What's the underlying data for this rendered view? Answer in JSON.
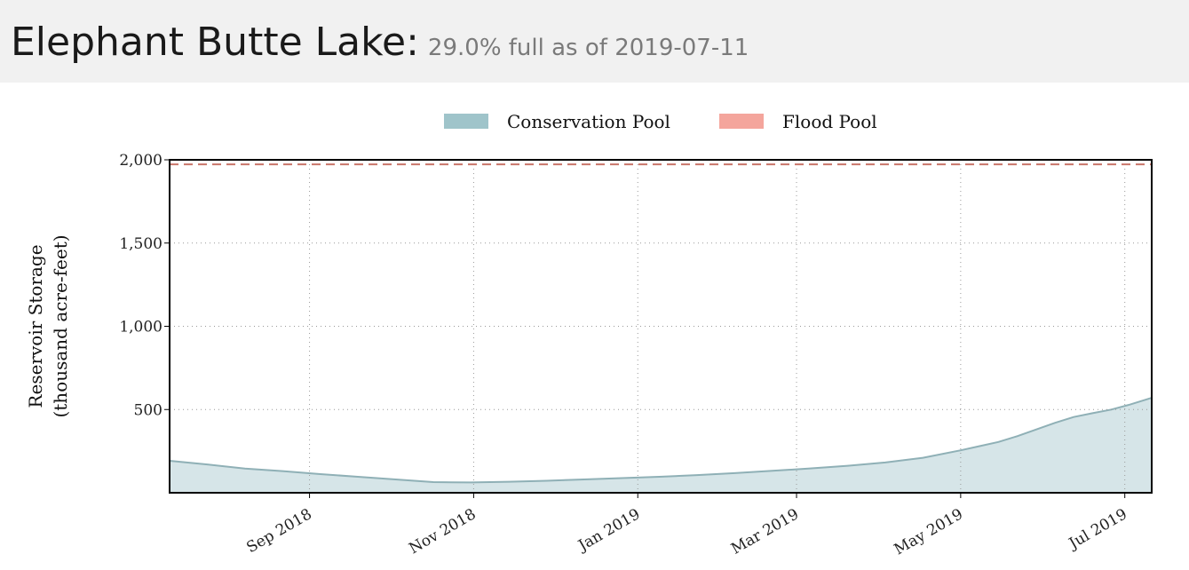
{
  "header": {
    "lake_name": "Elephant Butte Lake:",
    "status": "29.0% full as of 2019-07-11"
  },
  "chart_data": {
    "type": "area",
    "legend": [
      {
        "name": "Conservation Pool",
        "color": "#9fc4ca"
      },
      {
        "name": "Flood Pool",
        "color": "#f4a59c"
      }
    ],
    "legend_position": "top-center",
    "ylabel": [
      "Reservoir Storage",
      "(thousand acre-feet)"
    ],
    "ylim": [
      0,
      2000
    ],
    "yticks": [
      500,
      1000,
      1500,
      2000
    ],
    "ytick_labels": [
      "500",
      "1,000",
      "1,500",
      "2,000"
    ],
    "xlim": [
      "2018-07-11",
      "2019-07-11"
    ],
    "xticks": [
      "2018-09-01",
      "2018-11-01",
      "2019-01-01",
      "2019-03-01",
      "2019-05-01",
      "2019-07-01"
    ],
    "xtick_labels": [
      "Sep 2018",
      "Nov 2018",
      "Jan 2019",
      "Mar 2019",
      "May 2019",
      "Jul 2019"
    ],
    "grid": true,
    "flood_pool_line": 1973,
    "colors": {
      "conservation_fill": "#d6e5e8",
      "conservation_line": "#8fb0b6",
      "flood_line": "#c9766a",
      "grid": "#999999"
    },
    "series": [
      {
        "name": "Conservation Pool",
        "points": [
          [
            "2018-07-11",
            192
          ],
          [
            "2018-07-25",
            170
          ],
          [
            "2018-08-08",
            145
          ],
          [
            "2018-08-22",
            130
          ],
          [
            "2018-09-05",
            112
          ],
          [
            "2018-09-19",
            96
          ],
          [
            "2018-10-03",
            80
          ],
          [
            "2018-10-17",
            64
          ],
          [
            "2018-10-31",
            62
          ],
          [
            "2018-11-14",
            66
          ],
          [
            "2018-11-28",
            72
          ],
          [
            "2018-12-12",
            80
          ],
          [
            "2018-12-26",
            88
          ],
          [
            "2019-01-09",
            96
          ],
          [
            "2019-01-23",
            106
          ],
          [
            "2019-02-06",
            118
          ],
          [
            "2019-02-20",
            132
          ],
          [
            "2019-03-06",
            146
          ],
          [
            "2019-03-20",
            162
          ],
          [
            "2019-04-03",
            182
          ],
          [
            "2019-04-17",
            210
          ],
          [
            "2019-05-01",
            255
          ],
          [
            "2019-05-08",
            280
          ],
          [
            "2019-05-15",
            305
          ],
          [
            "2019-05-22",
            340
          ],
          [
            "2019-05-29",
            380
          ],
          [
            "2019-06-05",
            420
          ],
          [
            "2019-06-12",
            455
          ],
          [
            "2019-06-19",
            478
          ],
          [
            "2019-06-26",
            500
          ],
          [
            "2019-07-03",
            530
          ],
          [
            "2019-07-11",
            570
          ]
        ]
      }
    ]
  }
}
